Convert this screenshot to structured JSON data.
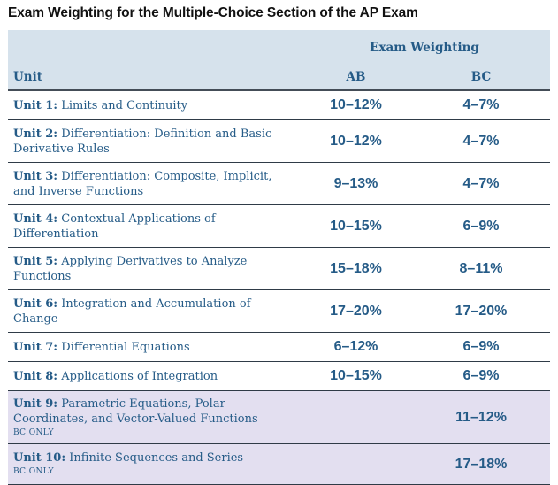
{
  "title": "Exam Weighting for the Multiple-Choice Section of the AP Exam",
  "header": {
    "group_label": "Exam Weighting",
    "unit_label": "Unit",
    "ab_label": "AB",
    "bc_label": "BC"
  },
  "rows": [
    {
      "unit": "Unit 1:",
      "name": "Limits and Continuity",
      "note": "",
      "ab": "10–12%",
      "bc": "4–7%"
    },
    {
      "unit": "Unit 2:",
      "name": "Differentiation: Definition and Basic Derivative Rules",
      "note": "",
      "ab": "10–12%",
      "bc": "4–7%"
    },
    {
      "unit": "Unit 3:",
      "name": "Differentiation: Composite, Implicit, and Inverse Functions",
      "note": "",
      "ab": "9–13%",
      "bc": "4–7%"
    },
    {
      "unit": "Unit 4:",
      "name": "Contextual Applications of Differentiation",
      "note": "",
      "ab": "10–15%",
      "bc": "6–9%"
    },
    {
      "unit": "Unit 5:",
      "name": "Applying Derivatives to Analyze Functions",
      "note": "",
      "ab": "15–18%",
      "bc": "8–11%"
    },
    {
      "unit": "Unit 6:",
      "name": "Integration and Accumulation of Change",
      "note": "",
      "ab": "17–20%",
      "bc": "17–20%"
    },
    {
      "unit": "Unit 7:",
      "name": "Differential Equations",
      "note": "",
      "ab": "6–12%",
      "bc": "6–9%"
    },
    {
      "unit": "Unit 8:",
      "name": "Applications of Integration",
      "note": "",
      "ab": "10–15%",
      "bc": "6–9%"
    },
    {
      "unit": "Unit 9:",
      "name": "Parametric Equations, Polar Coordinates, and Vector-Valued Functions",
      "note": "BC ONLY",
      "ab": "",
      "bc": "11–12%"
    },
    {
      "unit": "Unit 10:",
      "name": "Infinite Sequences and Series",
      "note": "BC ONLY",
      "ab": "",
      "bc": "17–18%"
    }
  ]
}
